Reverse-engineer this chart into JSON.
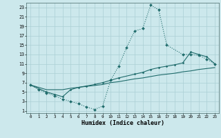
{
  "xlabel": "Humidex (Indice chaleur)",
  "background_color": "#cce8ec",
  "grid_color": "#aacfd5",
  "line_color": "#1f6b6b",
  "xticks": [
    0,
    1,
    2,
    3,
    4,
    5,
    6,
    7,
    8,
    9,
    10,
    11,
    12,
    13,
    14,
    15,
    16,
    17,
    18,
    19,
    20,
    21,
    22,
    23
  ],
  "yticks": [
    1,
    3,
    5,
    7,
    9,
    11,
    13,
    15,
    17,
    19,
    21,
    23
  ],
  "line1_x": [
    0,
    1,
    2,
    3,
    4,
    5,
    6,
    7,
    8,
    9,
    10,
    11,
    12,
    13,
    14,
    15,
    16,
    17,
    19,
    20,
    21,
    22,
    23
  ],
  "line1_y": [
    6.5,
    5.5,
    4.8,
    4.2,
    3.5,
    3.0,
    2.5,
    1.8,
    1.3,
    2.0,
    7.5,
    10.5,
    14.5,
    18.0,
    18.5,
    23.5,
    22.5,
    15.0,
    13.0,
    13.0,
    12.8,
    12.0,
    11.0
  ],
  "line2_x": [
    0,
    2,
    3,
    4,
    5,
    6,
    7,
    8,
    9,
    10,
    11,
    12,
    13,
    14,
    15,
    16,
    17,
    18,
    19,
    20,
    21,
    22,
    23
  ],
  "line2_y": [
    6.5,
    5.5,
    5.5,
    5.5,
    5.8,
    6.0,
    6.2,
    6.4,
    6.6,
    7.0,
    7.2,
    7.5,
    7.8,
    8.0,
    8.3,
    8.6,
    8.8,
    9.0,
    9.3,
    9.5,
    9.8,
    10.0,
    10.2
  ],
  "line3_x": [
    0,
    2,
    3,
    4,
    5,
    6,
    7,
    8,
    9,
    10,
    11,
    13,
    14,
    15,
    16,
    17,
    18,
    19,
    20,
    21,
    22,
    23
  ],
  "line3_y": [
    6.5,
    5.0,
    4.5,
    4.0,
    5.5,
    6.0,
    6.3,
    6.6,
    7.0,
    7.5,
    8.0,
    8.8,
    9.2,
    9.8,
    10.2,
    10.5,
    10.8,
    11.2,
    13.5,
    13.0,
    12.5,
    11.0
  ]
}
